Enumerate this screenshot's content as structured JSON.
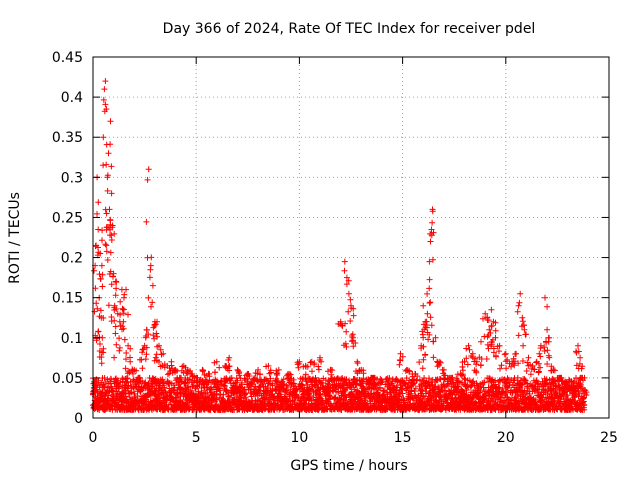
{
  "chart_data": {
    "type": "scatter",
    "title": "Day 366 of 2024, Rate Of TEC Index for receiver pdel",
    "xlabel": "GPS time / hours",
    "ylabel": "ROTI / TECUs",
    "xlim": [
      0,
      25
    ],
    "ylim": [
      0,
      0.45
    ],
    "xticks": [
      0,
      5,
      10,
      15,
      20,
      25
    ],
    "xtick_labels": [
      "0",
      "5",
      "10",
      "15",
      "20",
      "25"
    ],
    "yticks": [
      0,
      0.05,
      0.1,
      0.15,
      0.2,
      0.25,
      0.3,
      0.35,
      0.4,
      0.45
    ],
    "ytick_labels": [
      "0",
      "0.05",
      "0.1",
      "0.15",
      "0.2",
      "0.25",
      "0.3",
      "0.35",
      "0.4",
      "0.45"
    ],
    "grid": true,
    "marker": "+",
    "color": "#ff0000",
    "series": [
      {
        "name": "ROTI",
        "points": [
          [
            0.0,
            0.03
          ],
          [
            0.05,
            0.045
          ],
          [
            0.1,
            0.19
          ],
          [
            0.15,
            0.215
          ],
          [
            0.2,
            0.3
          ],
          [
            0.25,
            0.235
          ],
          [
            0.3,
            0.15
          ],
          [
            0.35,
            0.205
          ],
          [
            0.4,
            0.125
          ],
          [
            0.45,
            0.1
          ],
          [
            0.5,
            0.35
          ],
          [
            0.55,
            0.41
          ],
          [
            0.6,
            0.42
          ],
          [
            0.65,
            0.385
          ],
          [
            0.7,
            0.3
          ],
          [
            0.75,
            0.33
          ],
          [
            0.8,
            0.26
          ],
          [
            0.85,
            0.37
          ],
          [
            0.9,
            0.28
          ],
          [
            0.95,
            0.24
          ],
          [
            1.0,
            0.18
          ],
          [
            1.05,
            0.14
          ],
          [
            1.1,
            0.17
          ],
          [
            1.2,
            0.13
          ],
          [
            1.3,
            0.12
          ],
          [
            1.4,
            0.16
          ],
          [
            1.5,
            0.15
          ],
          [
            1.6,
            0.16
          ],
          [
            1.7,
            0.09
          ],
          [
            1.8,
            0.07
          ],
          [
            2.0,
            0.06
          ],
          [
            2.2,
            0.05
          ],
          [
            2.4,
            0.085
          ],
          [
            2.5,
            0.09
          ],
          [
            2.6,
            0.11
          ],
          [
            2.7,
            0.31
          ],
          [
            2.8,
            0.19
          ],
          [
            2.9,
            0.165
          ],
          [
            3.0,
            0.12
          ],
          [
            3.1,
            0.12
          ],
          [
            3.2,
            0.09
          ],
          [
            3.4,
            0.08
          ],
          [
            3.6,
            0.065
          ],
          [
            3.8,
            0.07
          ],
          [
            4.0,
            0.06
          ],
          [
            4.2,
            0.05
          ],
          [
            4.4,
            0.065
          ],
          [
            4.6,
            0.06
          ],
          [
            4.8,
            0.055
          ],
          [
            5.0,
            0.05
          ],
          [
            5.3,
            0.06
          ],
          [
            5.6,
            0.055
          ],
          [
            6.0,
            0.07
          ],
          [
            6.4,
            0.065
          ],
          [
            6.6,
            0.075
          ],
          [
            7.0,
            0.06
          ],
          [
            7.5,
            0.055
          ],
          [
            8.0,
            0.06
          ],
          [
            8.5,
            0.065
          ],
          [
            9.0,
            0.06
          ],
          [
            9.5,
            0.055
          ],
          [
            10.0,
            0.07
          ],
          [
            10.3,
            0.065
          ],
          [
            10.6,
            0.07
          ],
          [
            11.0,
            0.075
          ],
          [
            11.5,
            0.06
          ],
          [
            12.0,
            0.12
          ],
          [
            12.2,
            0.195
          ],
          [
            12.3,
            0.175
          ],
          [
            12.4,
            0.155
          ],
          [
            12.5,
            0.14
          ],
          [
            12.6,
            0.1
          ],
          [
            12.8,
            0.07
          ],
          [
            13.0,
            0.06
          ],
          [
            13.5,
            0.05
          ],
          [
            14.0,
            0.045
          ],
          [
            14.5,
            0.04
          ],
          [
            14.9,
            0.08
          ],
          [
            15.2,
            0.06
          ],
          [
            15.6,
            0.055
          ],
          [
            15.9,
            0.09
          ],
          [
            16.0,
            0.14
          ],
          [
            16.1,
            0.12
          ],
          [
            16.2,
            0.13
          ],
          [
            16.3,
            0.195
          ],
          [
            16.35,
            0.22
          ],
          [
            16.4,
            0.235
          ],
          [
            16.45,
            0.26
          ],
          [
            16.6,
            0.1
          ],
          [
            16.8,
            0.07
          ],
          [
            17.0,
            0.06
          ],
          [
            17.4,
            0.05
          ],
          [
            17.8,
            0.055
          ],
          [
            18.0,
            0.07
          ],
          [
            18.2,
            0.09
          ],
          [
            18.4,
            0.08
          ],
          [
            18.6,
            0.07
          ],
          [
            18.8,
            0.095
          ],
          [
            19.0,
            0.13
          ],
          [
            19.1,
            0.125
          ],
          [
            19.2,
            0.11
          ],
          [
            19.3,
            0.135
          ],
          [
            19.4,
            0.12
          ],
          [
            19.5,
            0.1
          ],
          [
            19.7,
            0.09
          ],
          [
            20.0,
            0.08
          ],
          [
            20.3,
            0.07
          ],
          [
            20.5,
            0.08
          ],
          [
            20.7,
            0.155
          ],
          [
            20.8,
            0.125
          ],
          [
            20.9,
            0.11
          ],
          [
            21.1,
            0.075
          ],
          [
            21.3,
            0.065
          ],
          [
            21.5,
            0.07
          ],
          [
            21.7,
            0.09
          ],
          [
            21.9,
            0.15
          ],
          [
            22.0,
            0.11
          ],
          [
            22.1,
            0.1
          ],
          [
            22.3,
            0.06
          ],
          [
            22.6,
            0.05
          ],
          [
            22.9,
            0.045
          ],
          [
            23.2,
            0.04
          ],
          [
            23.5,
            0.09
          ],
          [
            23.6,
            0.075
          ],
          [
            23.7,
            0.05
          ],
          [
            23.8,
            0.035
          ]
        ]
      }
    ],
    "baseline_band": {
      "y_low": 0.01,
      "y_high": 0.05,
      "x_start": 0,
      "x_end": 23.8
    }
  }
}
